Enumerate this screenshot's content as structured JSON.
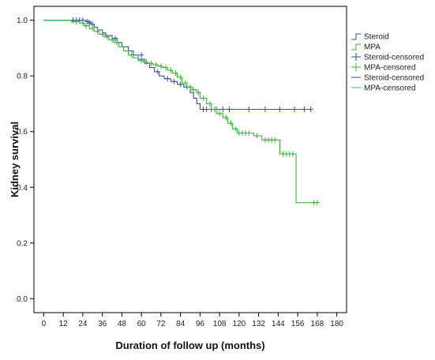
{
  "chart_data": {
    "type": "line",
    "xlabel": "Duration of follow up (months)",
    "ylabel": "Kidney survival",
    "xlim": [
      -6,
      186
    ],
    "ylim": [
      -0.05,
      1.05
    ],
    "x_ticks": [
      0,
      12,
      24,
      36,
      48,
      60,
      72,
      84,
      96,
      108,
      120,
      132,
      144,
      156,
      168,
      180
    ],
    "y_ticks": [
      0.0,
      0.2,
      0.4,
      0.6,
      0.8,
      1.0
    ],
    "y_tick_labels": [
      "0.0",
      "0.2",
      "0.4",
      "0.6",
      "0.8",
      "1.0"
    ],
    "grid": false,
    "legend_position": "right",
    "legend": [
      {
        "label": "Steroid",
        "style": "step",
        "color": "#3a4f9f"
      },
      {
        "label": "MPA",
        "style": "step",
        "color": "#3cb43c"
      },
      {
        "label": "Steroid-censored",
        "style": "cross",
        "color": "#3a4f9f"
      },
      {
        "label": "MPA-censored",
        "style": "cross",
        "color": "#3cb43c"
      },
      {
        "label": "Steroid-censored",
        "style": "line",
        "color": "#3a4f9f"
      },
      {
        "label": "MPA-censored",
        "style": "line",
        "color": "#3cb43c"
      }
    ],
    "series": [
      {
        "name": "Steroid",
        "color": "#3a4f9f",
        "steps": [
          [
            0,
            1.0
          ],
          [
            26,
            0.995
          ],
          [
            29,
            0.985
          ],
          [
            31,
            0.975
          ],
          [
            33,
            0.965
          ],
          [
            36,
            0.955
          ],
          [
            38,
            0.945
          ],
          [
            42,
            0.935
          ],
          [
            45,
            0.92
          ],
          [
            48,
            0.905
          ],
          [
            52,
            0.89
          ],
          [
            55,
            0.875
          ],
          [
            58,
            0.86
          ],
          [
            62,
            0.845
          ],
          [
            65,
            0.83
          ],
          [
            68,
            0.815
          ],
          [
            71,
            0.8
          ],
          [
            74,
            0.79
          ],
          [
            78,
            0.78
          ],
          [
            82,
            0.77
          ],
          [
            86,
            0.76
          ],
          [
            90,
            0.74
          ],
          [
            92,
            0.72
          ],
          [
            94,
            0.7
          ],
          [
            96,
            0.68
          ],
          [
            165,
            0.68
          ]
        ],
        "censored": [
          [
            18,
            1.0
          ],
          [
            20,
            1.0
          ],
          [
            22,
            1.0
          ],
          [
            24,
            1.0
          ],
          [
            27,
            0.995
          ],
          [
            28,
            0.99
          ],
          [
            30,
            0.985
          ],
          [
            44,
            0.935
          ],
          [
            60,
            0.875
          ],
          [
            70,
            0.815
          ],
          [
            76,
            0.79
          ],
          [
            80,
            0.78
          ],
          [
            84,
            0.77
          ],
          [
            88,
            0.76
          ],
          [
            98,
            0.68
          ],
          [
            100,
            0.68
          ],
          [
            103,
            0.68
          ],
          [
            106,
            0.68
          ],
          [
            110,
            0.68
          ],
          [
            114,
            0.68
          ],
          [
            126,
            0.68
          ],
          [
            136,
            0.68
          ],
          [
            145,
            0.68
          ],
          [
            154,
            0.68
          ],
          [
            160,
            0.68
          ],
          [
            164,
            0.68
          ]
        ]
      },
      {
        "name": "MPA",
        "color": "#3cb43c",
        "steps": [
          [
            0,
            1.0
          ],
          [
            17,
            0.995
          ],
          [
            22,
            0.99
          ],
          [
            25,
            0.98
          ],
          [
            28,
            0.97
          ],
          [
            31,
            0.96
          ],
          [
            34,
            0.95
          ],
          [
            37,
            0.94
          ],
          [
            40,
            0.93
          ],
          [
            43,
            0.92
          ],
          [
            46,
            0.905
          ],
          [
            49,
            0.89
          ],
          [
            52,
            0.875
          ],
          [
            55,
            0.865
          ],
          [
            58,
            0.855
          ],
          [
            61,
            0.85
          ],
          [
            64,
            0.845
          ],
          [
            67,
            0.84
          ],
          [
            70,
            0.835
          ],
          [
            73,
            0.83
          ],
          [
            76,
            0.82
          ],
          [
            79,
            0.81
          ],
          [
            82,
            0.795
          ],
          [
            85,
            0.775
          ],
          [
            88,
            0.76
          ],
          [
            91,
            0.75
          ],
          [
            94,
            0.74
          ],
          [
            96,
            0.72
          ],
          [
            100,
            0.7
          ],
          [
            103,
            0.68
          ],
          [
            106,
            0.665
          ],
          [
            110,
            0.65
          ],
          [
            113,
            0.63
          ],
          [
            116,
            0.61
          ],
          [
            119,
            0.595
          ],
          [
            129,
            0.585
          ],
          [
            134,
            0.57
          ],
          [
            145,
            0.52
          ],
          [
            155,
            0.345
          ],
          [
            168,
            0.345
          ]
        ],
        "censored": [
          [
            20,
            0.995
          ],
          [
            24,
            0.99
          ],
          [
            26,
            0.98
          ],
          [
            30,
            0.97
          ],
          [
            33,
            0.96
          ],
          [
            36,
            0.95
          ],
          [
            39,
            0.94
          ],
          [
            42,
            0.93
          ],
          [
            45,
            0.92
          ],
          [
            54,
            0.875
          ],
          [
            60,
            0.855
          ],
          [
            63,
            0.85
          ],
          [
            66,
            0.845
          ],
          [
            69,
            0.84
          ],
          [
            72,
            0.835
          ],
          [
            75,
            0.83
          ],
          [
            78,
            0.82
          ],
          [
            81,
            0.81
          ],
          [
            84,
            0.795
          ],
          [
            87,
            0.775
          ],
          [
            90,
            0.76
          ],
          [
            92,
            0.75
          ],
          [
            95,
            0.74
          ],
          [
            98,
            0.72
          ],
          [
            102,
            0.7
          ],
          [
            105,
            0.68
          ],
          [
            108,
            0.665
          ],
          [
            112,
            0.65
          ],
          [
            115,
            0.63
          ],
          [
            118,
            0.61
          ],
          [
            120,
            0.595
          ],
          [
            122,
            0.595
          ],
          [
            124,
            0.595
          ],
          [
            126,
            0.595
          ],
          [
            131,
            0.585
          ],
          [
            136,
            0.57
          ],
          [
            138,
            0.57
          ],
          [
            140,
            0.57
          ],
          [
            142,
            0.57
          ],
          [
            147,
            0.52
          ],
          [
            149,
            0.52
          ],
          [
            151,
            0.52
          ],
          [
            153,
            0.52
          ],
          [
            166,
            0.345
          ],
          [
            168,
            0.345
          ]
        ]
      }
    ]
  }
}
